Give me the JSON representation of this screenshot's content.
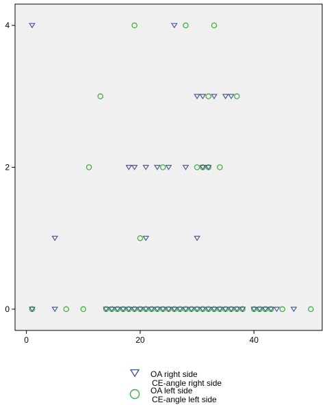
{
  "chart_data": {
    "type": "scatter",
    "title": "",
    "xlabel": "",
    "ylabel": "",
    "xlim": [
      -2,
      52
    ],
    "ylim": [
      -0.3,
      4.3
    ],
    "x_ticks": [
      0,
      20,
      40
    ],
    "y_ticks": [
      0,
      2,
      4
    ],
    "x_tick_labels": [
      "0",
      "20",
      "40"
    ],
    "y_tick_labels": [
      "0",
      "2",
      "4"
    ],
    "grid": false,
    "background_color": "#f0f0f0",
    "legend_position": "bottom-center",
    "series": [
      {
        "marker": "triangle-down",
        "color": "#3a4f8e",
        "legend_line1": "OA right side",
        "legend_line2": "CE-angle right side",
        "points": [
          [
            1,
            4
          ],
          [
            26,
            4
          ],
          [
            30,
            3
          ],
          [
            31,
            3
          ],
          [
            33,
            3
          ],
          [
            35,
            3
          ],
          [
            36,
            3
          ],
          [
            18,
            2
          ],
          [
            19,
            2
          ],
          [
            21,
            2
          ],
          [
            23,
            2
          ],
          [
            25,
            2
          ],
          [
            28,
            2
          ],
          [
            31,
            2
          ],
          [
            32,
            2
          ],
          [
            5,
            1
          ],
          [
            21,
            1
          ],
          [
            30,
            1
          ],
          [
            1,
            0
          ],
          [
            5,
            0
          ],
          [
            14,
            0
          ],
          [
            15,
            0
          ],
          [
            16,
            0
          ],
          [
            17,
            0
          ],
          [
            18,
            0
          ],
          [
            19,
            0
          ],
          [
            20,
            0
          ],
          [
            21,
            0
          ],
          [
            22,
            0
          ],
          [
            23,
            0
          ],
          [
            24,
            0
          ],
          [
            25,
            0
          ],
          [
            26,
            0
          ],
          [
            27,
            0
          ],
          [
            28,
            0
          ],
          [
            29,
            0
          ],
          [
            30,
            0
          ],
          [
            31,
            0
          ],
          [
            32,
            0
          ],
          [
            33,
            0
          ],
          [
            34,
            0
          ],
          [
            35,
            0
          ],
          [
            36,
            0
          ],
          [
            37,
            0
          ],
          [
            38,
            0
          ],
          [
            40,
            0
          ],
          [
            41,
            0
          ],
          [
            42,
            0
          ],
          [
            43,
            0
          ],
          [
            44,
            0
          ],
          [
            47,
            0
          ]
        ]
      },
      {
        "marker": "circle",
        "color": "#3cb43c",
        "legend_line1": "OA left side",
        "legend_line2": "CE-angle left side",
        "points": [
          [
            19,
            4
          ],
          [
            28,
            4
          ],
          [
            33,
            4
          ],
          [
            13,
            3
          ],
          [
            32,
            3
          ],
          [
            37,
            3
          ],
          [
            11,
            2
          ],
          [
            24,
            2
          ],
          [
            30,
            2
          ],
          [
            31,
            2
          ],
          [
            32,
            2
          ],
          [
            34,
            2
          ],
          [
            20,
            1
          ],
          [
            1,
            0
          ],
          [
            7,
            0
          ],
          [
            10,
            0
          ],
          [
            14,
            0
          ],
          [
            15,
            0
          ],
          [
            16,
            0
          ],
          [
            17,
            0
          ],
          [
            18,
            0
          ],
          [
            19,
            0
          ],
          [
            20,
            0
          ],
          [
            21,
            0
          ],
          [
            22,
            0
          ],
          [
            23,
            0
          ],
          [
            24,
            0
          ],
          [
            25,
            0
          ],
          [
            26,
            0
          ],
          [
            27,
            0
          ],
          [
            28,
            0
          ],
          [
            29,
            0
          ],
          [
            30,
            0
          ],
          [
            31,
            0
          ],
          [
            32,
            0
          ],
          [
            33,
            0
          ],
          [
            34,
            0
          ],
          [
            35,
            0
          ],
          [
            36,
            0
          ],
          [
            37,
            0
          ],
          [
            38,
            0
          ],
          [
            40,
            0
          ],
          [
            41,
            0
          ],
          [
            42,
            0
          ],
          [
            43,
            0
          ],
          [
            45,
            0
          ],
          [
            50,
            0
          ]
        ]
      }
    ]
  }
}
